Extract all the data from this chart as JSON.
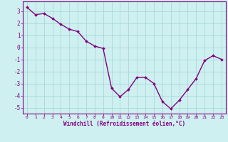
{
  "x": [
    0,
    1,
    2,
    3,
    4,
    5,
    6,
    7,
    8,
    9,
    10,
    11,
    12,
    13,
    14,
    15,
    16,
    17,
    18,
    19,
    20,
    21,
    22,
    23
  ],
  "y": [
    3.3,
    2.7,
    2.8,
    2.4,
    1.9,
    1.5,
    1.3,
    0.5,
    0.1,
    -0.1,
    -3.4,
    -4.1,
    -3.5,
    -2.5,
    -2.5,
    -3.0,
    -4.5,
    -5.1,
    -4.4,
    -3.5,
    -2.6,
    -1.1,
    -0.7,
    -1.0
  ],
  "line_color": "#800080",
  "marker": "D",
  "marker_size": 1.8,
  "bg_color": "#cff0f0",
  "grid_color": "#a8d8d8",
  "xlabel": "Windchill (Refroidissement éolien,°C)",
  "xlabel_color": "#800080",
  "tick_color": "#800080",
  "spine_color": "#800080",
  "xlim": [
    -0.5,
    23.5
  ],
  "ylim": [
    -5.5,
    3.8
  ],
  "yticks": [
    -5,
    -4,
    -3,
    -2,
    -1,
    0,
    1,
    2,
    3
  ],
  "xticks": [
    0,
    1,
    2,
    3,
    4,
    5,
    6,
    7,
    8,
    9,
    10,
    11,
    12,
    13,
    14,
    15,
    16,
    17,
    18,
    19,
    20,
    21,
    22,
    23
  ],
  "linewidth": 1.0,
  "xtick_fontsize": 4.5,
  "ytick_fontsize": 5.5,
  "xlabel_fontsize": 5.5
}
